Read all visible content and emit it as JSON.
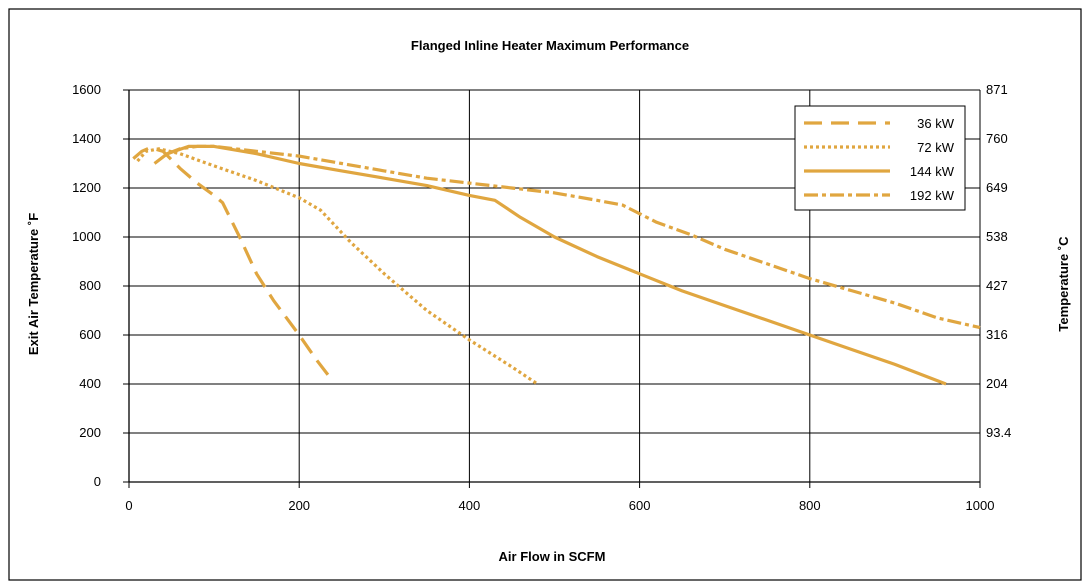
{
  "chart_data": {
    "type": "line",
    "title": "Flanged Inline Heater Maximum Performance",
    "xlabel": "Air Flow in SCFM",
    "ylabel": "Exit Air Temperature ˚F",
    "y2label": "Temperature ˚C",
    "xlim": [
      0,
      1000
    ],
    "ylim": [
      0,
      1600
    ],
    "x_ticks": [
      "0",
      "200",
      "400",
      "600",
      "800",
      "1000"
    ],
    "y_ticks": [
      "0",
      "200",
      "400",
      "600",
      "800",
      "1000",
      "1200",
      "1400",
      "1600"
    ],
    "y2_ticks": [
      "",
      "93.4",
      "204",
      "316",
      "427",
      "538",
      "649",
      "760",
      "871"
    ],
    "grid": true,
    "legend_position": "top-right",
    "series": [
      {
        "name": "36 kW",
        "style": "dashed",
        "x": [
          5,
          15,
          25,
          40,
          60,
          80,
          100,
          110,
          130,
          150,
          170,
          200,
          220,
          240
        ],
        "y": [
          1320,
          1350,
          1365,
          1350,
          1280,
          1220,
          1170,
          1140,
          1000,
          850,
          740,
          600,
          500,
          410
        ]
      },
      {
        "name": "72 kW",
        "style": "dotted",
        "x": [
          10,
          20,
          35,
          60,
          100,
          150,
          200,
          225,
          260,
          300,
          350,
          400,
          450,
          480
        ],
        "y": [
          1310,
          1350,
          1360,
          1340,
          1290,
          1230,
          1160,
          1110,
          980,
          850,
          700,
          580,
          470,
          400
        ]
      },
      {
        "name": "144 kW",
        "style": "solid",
        "x": [
          30,
          45,
          70,
          100,
          150,
          200,
          250,
          300,
          350,
          400,
          430,
          460,
          500,
          550,
          600,
          650,
          700,
          750,
          800,
          850,
          900,
          960
        ],
        "y": [
          1300,
          1340,
          1370,
          1370,
          1340,
          1300,
          1270,
          1240,
          1210,
          1170,
          1150,
          1080,
          1000,
          920,
          850,
          780,
          720,
          660,
          600,
          540,
          480,
          400
        ]
      },
      {
        "name": "192 kW",
        "style": "dash-dot",
        "x": [
          45,
          60,
          80,
          100,
          150,
          200,
          250,
          300,
          350,
          400,
          450,
          500,
          550,
          580,
          620,
          660,
          700,
          750,
          800,
          850,
          900,
          950,
          1000
        ],
        "y": [
          1340,
          1360,
          1370,
          1370,
          1350,
          1330,
          1300,
          1270,
          1240,
          1220,
          1200,
          1180,
          1150,
          1130,
          1060,
          1010,
          950,
          890,
          830,
          780,
          730,
          670,
          630
        ]
      }
    ],
    "colors": {
      "series": "#e0a640",
      "axis": "#000000",
      "grid": "#000000",
      "frame": "#000000"
    }
  }
}
